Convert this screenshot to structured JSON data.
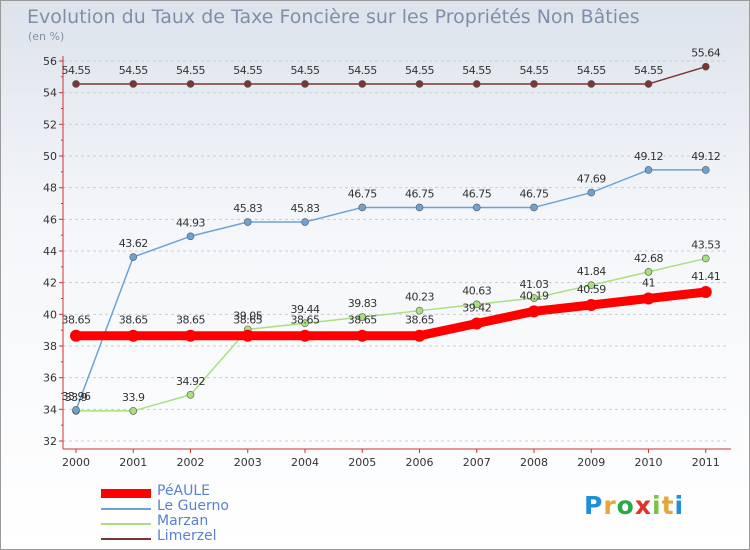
{
  "title": "Evolution du Taux de Taxe Foncière sur les Propriétés Non Bâties",
  "unit": "(en %)",
  "brand": {
    "name": "Proxiti",
    "letters": [
      "P",
      "r",
      "o",
      "x",
      "i",
      "t",
      "i"
    ],
    "colors": [
      "#1e8fd8",
      "#e8a53a",
      "#2aa84a",
      "#e0342a",
      "#7bc142",
      "#e8a53a",
      "#1e8fd8"
    ]
  },
  "chart_data": {
    "type": "line",
    "title": "Evolution du Taux de Taxe Foncière sur les Propriétés Non Bâties",
    "ylabel": "(en %)",
    "xlabel": "",
    "ylim": [
      32,
      56
    ],
    "yticks": [
      32,
      34,
      36,
      38,
      40,
      42,
      44,
      46,
      48,
      50,
      52,
      54,
      56
    ],
    "categories": [
      "2000",
      "2001",
      "2002",
      "2003",
      "2004",
      "2005",
      "2006",
      "2007",
      "2008",
      "2009",
      "2010",
      "2011"
    ],
    "series": [
      {
        "name": "PéAULE",
        "color": "#ff0000",
        "values": [
          38.65,
          38.65,
          38.65,
          38.65,
          38.65,
          38.65,
          38.65,
          39.42,
          40.19,
          40.59,
          41,
          41.41
        ],
        "labels": [
          "38.65",
          "38.65",
          "38.65",
          "38.65",
          "38.65",
          "38.65",
          "38.65",
          "39.42",
          "40.19",
          "40.59",
          "41",
          "41.41"
        ]
      },
      {
        "name": "Le Guerno",
        "color": "#6ba3d6",
        "values": [
          33.96,
          43.62,
          44.93,
          45.83,
          45.83,
          46.75,
          46.75,
          46.75,
          46.75,
          47.69,
          49.12,
          49.12
        ],
        "labels": [
          "33.96",
          "43.62",
          "44.93",
          "45.83",
          "45.83",
          "46.75",
          "46.75",
          "46.75",
          "46.75",
          "47.69",
          "49.12",
          "49.12"
        ]
      },
      {
        "name": "Marzan",
        "color": "#a8e07e",
        "values": [
          33.9,
          33.9,
          34.92,
          39.05,
          39.44,
          39.83,
          40.23,
          40.63,
          41.03,
          41.84,
          42.68,
          43.53
        ],
        "labels": [
          "33.9",
          "33.9",
          "34.92",
          "39.05",
          "39.44",
          "39.83",
          "40.23",
          "40.63",
          "41.03",
          "41.84",
          "42.68",
          "43.53"
        ]
      },
      {
        "name": "Limerzel",
        "color": "#7a3535",
        "values": [
          54.55,
          54.55,
          54.55,
          54.55,
          54.55,
          54.55,
          54.55,
          54.55,
          54.55,
          54.55,
          54.55,
          55.64
        ],
        "labels": [
          "54.55",
          "54.55",
          "54.55",
          "54.55",
          "54.55",
          "54.55",
          "54.55",
          "54.55",
          "54.55",
          "54.55",
          "54.55",
          "55.64"
        ]
      }
    ]
  }
}
